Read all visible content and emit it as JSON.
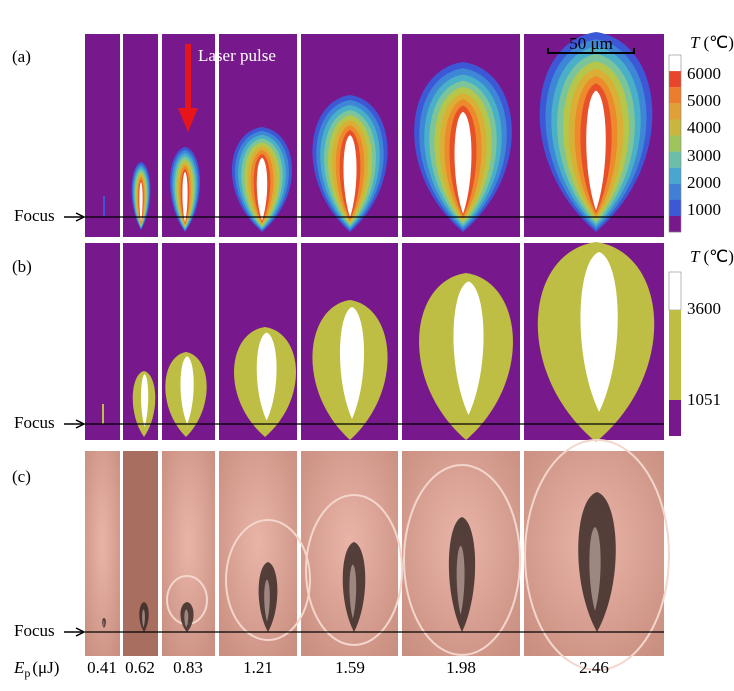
{
  "scale_bar": "50 μm",
  "annotation": "Laser pulse",
  "panels": [
    {
      "label": "(a)",
      "focus": "Focus",
      "colorbar": {
        "symbol": "T",
        "unit": "(℃)",
        "ticks": [
          6000,
          5000,
          4000,
          3000,
          2000,
          1000
        ]
      }
    },
    {
      "label": "(b)",
      "focus": "Focus",
      "colorbar": {
        "symbol": "T",
        "unit": "(℃)",
        "ticks": [
          3600,
          1051
        ]
      }
    },
    {
      "label": "(c)",
      "focus": "Focus"
    }
  ],
  "energy": {
    "symbol": "E",
    "subscript": "p",
    "unit": "(μJ)",
    "values": [
      0.41,
      0.62,
      0.83,
      1.21,
      1.59,
      1.98,
      2.46
    ]
  }
}
